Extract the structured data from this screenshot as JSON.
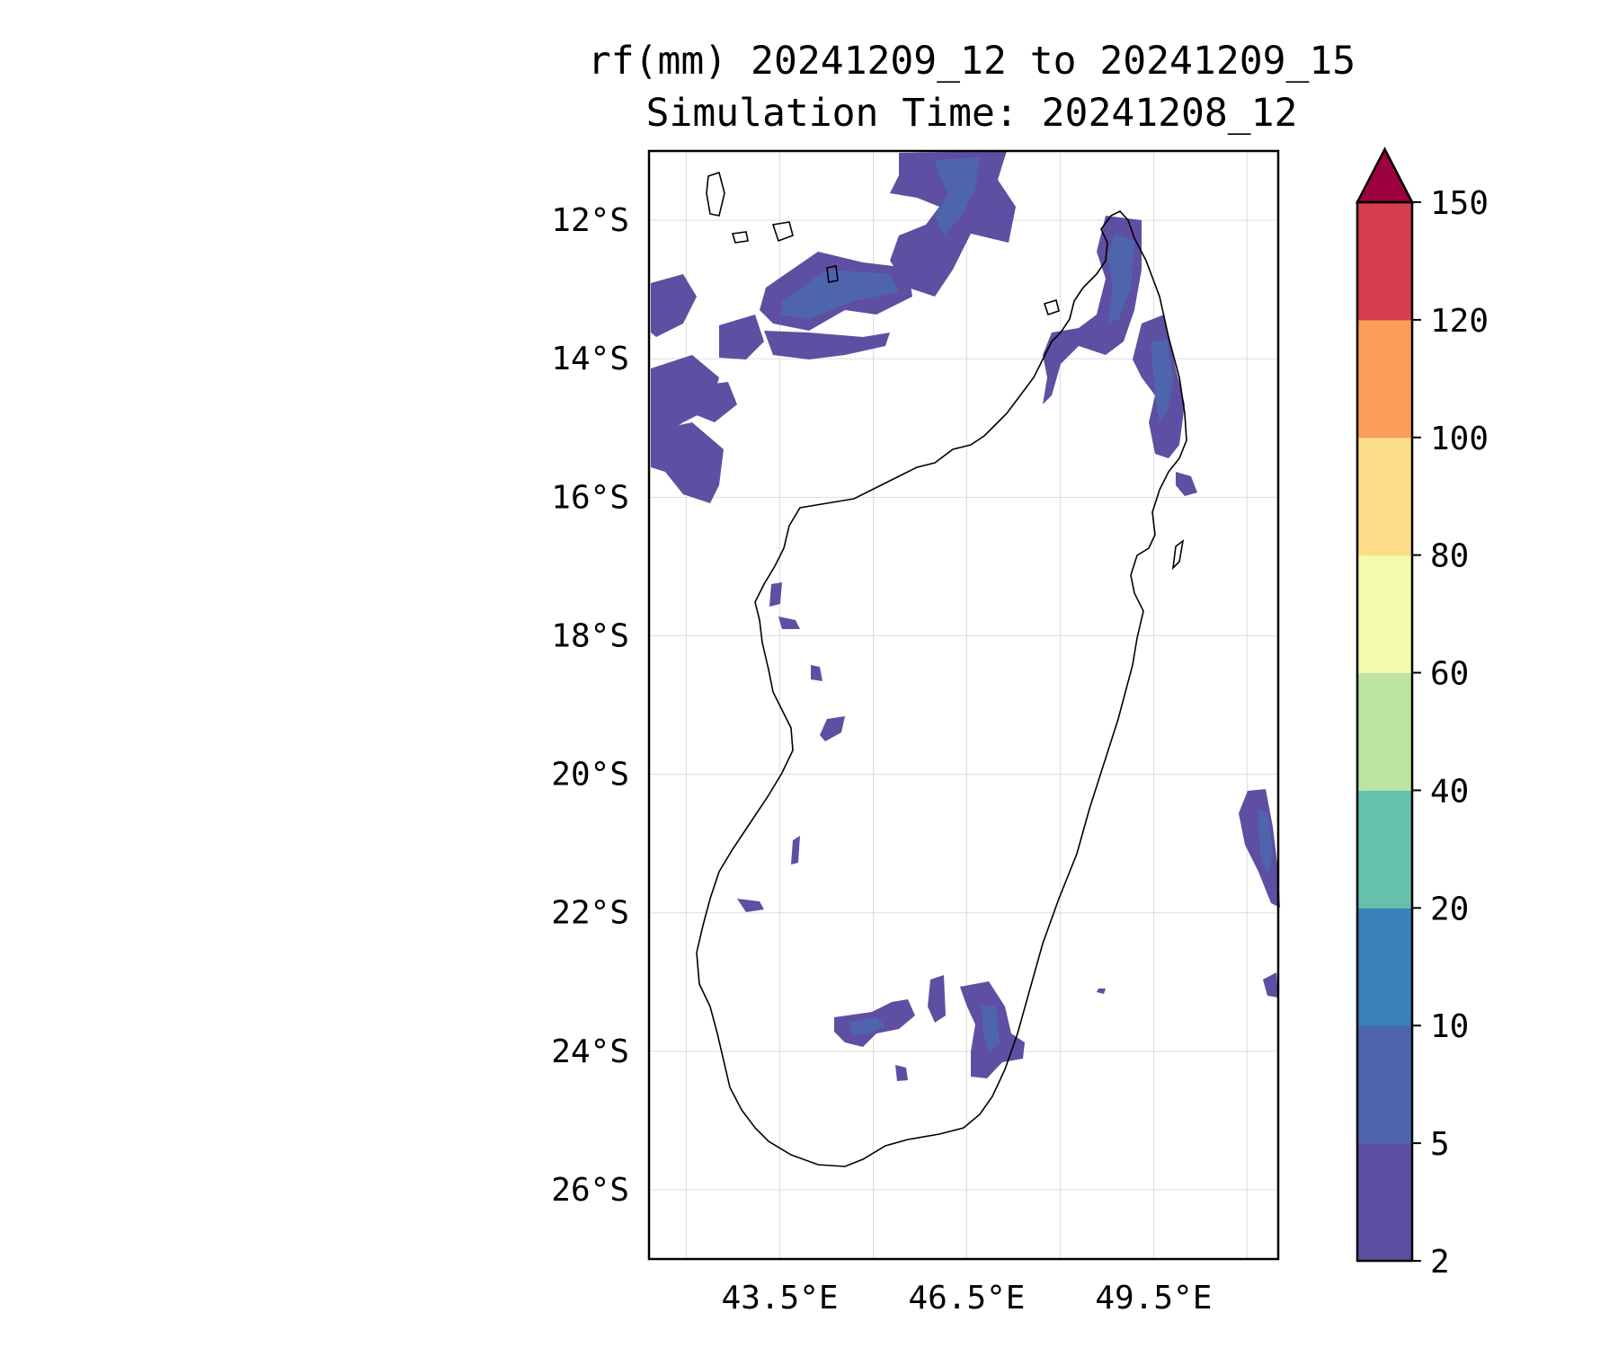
{
  "title": {
    "line1": "rf(mm) 20241209_12 to 20241209_15",
    "line2": "Simulation Time: 20241208_12"
  },
  "map": {
    "lon_range": [
      41.4,
      51.5
    ],
    "lat_range": [
      -27.0,
      -11.0
    ],
    "lat_ticks": [
      {
        "value": -12,
        "label": "12°S"
      },
      {
        "value": -14,
        "label": "14°S"
      },
      {
        "value": -16,
        "label": "16°S"
      },
      {
        "value": -18,
        "label": "18°S"
      },
      {
        "value": -20,
        "label": "20°S"
      },
      {
        "value": -22,
        "label": "22°S"
      },
      {
        "value": -24,
        "label": "24°S"
      },
      {
        "value": -26,
        "label": "26°S"
      }
    ],
    "lon_ticks": [
      {
        "value": 43.5,
        "label": "43.5°E"
      },
      {
        "value": 46.5,
        "label": "46.5°E"
      },
      {
        "value": 49.5,
        "label": "49.5°E"
      }
    ],
    "grid": true,
    "coastline_color": "#000000"
  },
  "colorbar": {
    "levels": [
      "2",
      "5",
      "10",
      "20",
      "40",
      "60",
      "80",
      "100",
      "120",
      "150"
    ],
    "colors": [
      "#5e4fa2",
      "#4e65ad",
      "#3a80b9",
      "#65c0ad",
      "#bde4a0",
      "#f3faad",
      "#fddd8a",
      "#f99d59",
      "#d53e4f"
    ],
    "extend_color": "#9e0142",
    "extend": "max"
  }
}
